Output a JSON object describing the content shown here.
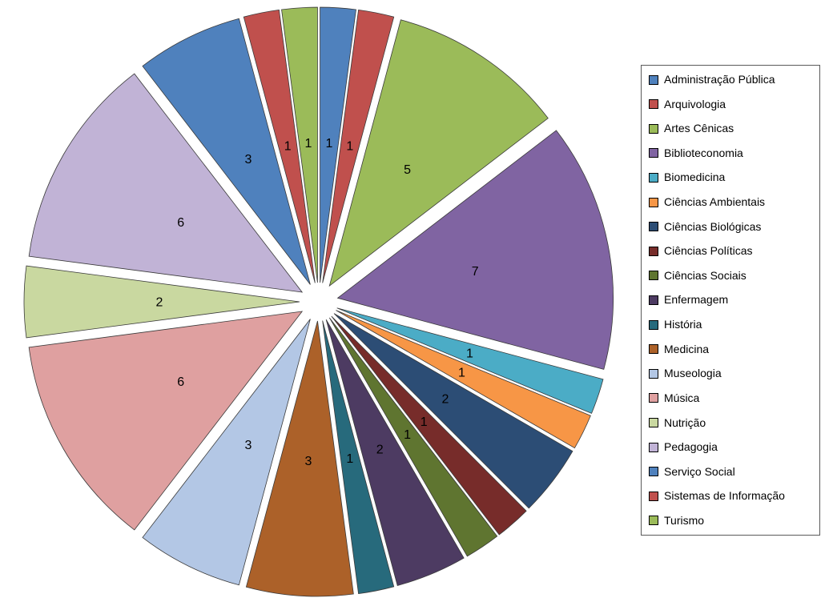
{
  "background_color": "#FFFFFF",
  "chart_data": {
    "type": "pie",
    "title": "",
    "exploded": true,
    "start_angle_deg": 0,
    "direction": "clockwise",
    "total": 48,
    "data_labels": "values",
    "categories": [
      "Administração Pública",
      "Arquivologia",
      "Artes Cênicas",
      "Biblioteconomia",
      "Biomedicina",
      "Ciências Ambientais",
      "Ciências Biológicas",
      "Ciências Políticas",
      "Ciências Sociais",
      "Enfermagem",
      "História",
      "Medicina",
      "Museologia",
      "Música",
      "Nutrição",
      "Pedagogia",
      "Serviço Social",
      "Sistemas de Informação",
      "Turismo"
    ],
    "values": [
      1,
      1,
      5,
      7,
      1,
      1,
      2,
      1,
      1,
      2,
      1,
      3,
      3,
      6,
      2,
      6,
      3,
      1,
      1
    ],
    "colors": [
      "#4F81BD",
      "#C0504D",
      "#9BBB59",
      "#8064A2",
      "#4BACC6",
      "#F79646",
      "#2C4D75",
      "#772C2A",
      "#5F7530",
      "#4D3B62",
      "#276A7C",
      "#AC6129",
      "#B3C7E5",
      "#DFA0A0",
      "#C9D8A0",
      "#C1B3D6",
      "#4F81BD",
      "#C0504D",
      "#9BBB59"
    ],
    "legend": {
      "position": "right",
      "border_color": "#5A5A5A",
      "background": "#FFFFFF"
    }
  }
}
